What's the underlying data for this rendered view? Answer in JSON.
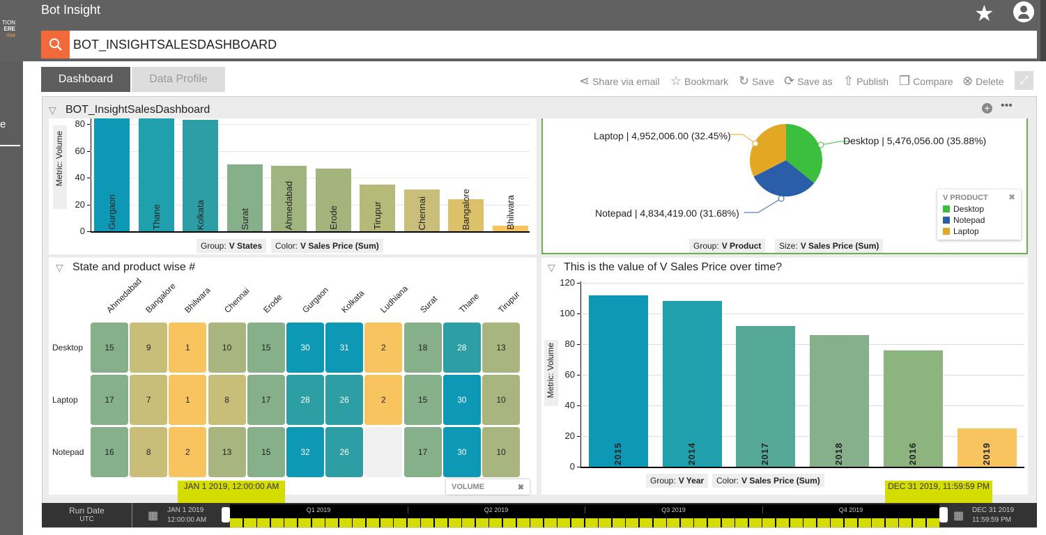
{
  "header": {
    "title": "Bot Insight",
    "logo_text": "AUTOMATION ANYWHERE Enterprise",
    "search_value": "BOT_INSIGHTSALESDASHBOARD"
  },
  "sidebar": {
    "partial_label": "e"
  },
  "tabs": [
    {
      "label": "Dashboard",
      "active": true
    },
    {
      "label": "Data Profile",
      "active": false
    }
  ],
  "toolbar": [
    {
      "label": "Share via email",
      "icon": "share-icon"
    },
    {
      "label": "Bookmark",
      "icon": "star-icon"
    },
    {
      "label": "Save",
      "icon": "refresh-icon"
    },
    {
      "label": "Save as",
      "icon": "save-as-icon"
    },
    {
      "label": "Publish",
      "icon": "upload-icon"
    },
    {
      "label": "Compare",
      "icon": "compare-icon"
    },
    {
      "label": "Delete",
      "icon": "delete-icon"
    }
  ],
  "dashboard": {
    "title": "BOT_InsightSalesDashboard"
  },
  "colors": {
    "accent": "#f26a3a",
    "timeline": "#d4dc00",
    "desktop": "#3cbf3c",
    "notepad": "#2a5ea8",
    "laptop": "#e3a823"
  },
  "chart_data": [
    {
      "type": "bar",
      "title": "",
      "ylabel": "Metric: Volume",
      "ylim": [
        0,
        80
      ],
      "yticks": [
        "0",
        "20",
        "40",
        "60",
        "80"
      ],
      "categories": [
        "Gurgaon",
        "Thane",
        "Kolkata",
        "Surat",
        "Ahmedabad",
        "Erode",
        "Tirupur",
        "Chennai",
        "Bangalore",
        "Bhilwara"
      ],
      "values": [
        86,
        85,
        83,
        50,
        49,
        47,
        35,
        31,
        24,
        4
      ],
      "footer": {
        "group_label": "Group:",
        "group": "V States",
        "color_label": "Color:",
        "color": "V Sales Price (Sum)"
      }
    },
    {
      "type": "pie",
      "categories": [
        "Desktop",
        "Notepad",
        "Laptop"
      ],
      "values": [
        5476056,
        4834419,
        4952006
      ],
      "labels": [
        "Desktop | 5,476,056.00 (35.88%)",
        "Notepad | 4,834,419.00 (31.68%)",
        "Laptop | 4,952,006.00 (32.45%)"
      ],
      "legend": {
        "title": "V PRODUCT",
        "items": [
          "Desktop",
          "Notepad",
          "Laptop"
        ]
      },
      "footer": {
        "group_label": "Group:",
        "group": "V Product",
        "size_label": "Size:",
        "size": "V Sales Price (Sum)"
      }
    },
    {
      "type": "heatmap",
      "title": "State and product wise #",
      "columns": [
        "Ahmedabad",
        "Bangalore",
        "Bhilwara",
        "Chennai",
        "Erode",
        "Gurgaon",
        "Kolkata",
        "Ludhiana",
        "Surat",
        "Thane",
        "Tirupur"
      ],
      "rows": [
        "Desktop",
        "Laptop",
        "Notepad"
      ],
      "values": [
        [
          15,
          9,
          1,
          10,
          15,
          30,
          31,
          2,
          18,
          28,
          13
        ],
        [
          17,
          7,
          1,
          8,
          17,
          28,
          26,
          2,
          15,
          30,
          10
        ],
        [
          16,
          8,
          2,
          13,
          15,
          32,
          26,
          null,
          17,
          30,
          10
        ]
      ],
      "legend_title": "VOLUME"
    },
    {
      "type": "bar",
      "title": "This is the value of V Sales Price over time?",
      "ylabel": "Metric: Volume",
      "ylim": [
        0,
        120
      ],
      "yticks": [
        "0",
        "20",
        "40",
        "60",
        "80",
        "100",
        "120"
      ],
      "categories": [
        "2015",
        "2014",
        "2017",
        "2018",
        "2016",
        "2019"
      ],
      "values": [
        112,
        108,
        92,
        86,
        76,
        25
      ],
      "footer": {
        "group_label": "Group:",
        "group": "V Year",
        "color_label": "Color:",
        "color": "V Sales Price (Sum)"
      }
    }
  ],
  "timeline": {
    "label": "Run Date",
    "tz": "UTC",
    "start_date": "JAN 1 2019",
    "start_time": "12:00:00 AM",
    "end_date": "DEC 31 2019",
    "end_time": "11:59:59 PM",
    "start_tip": "JAN 1 2019, 12:00:00 AM",
    "end_tip": "DEC 31 2019, 11:59:59 PM",
    "quarters": [
      "Q1 2019",
      "Q2 2019",
      "Q3 2019",
      "Q4 2019"
    ]
  }
}
